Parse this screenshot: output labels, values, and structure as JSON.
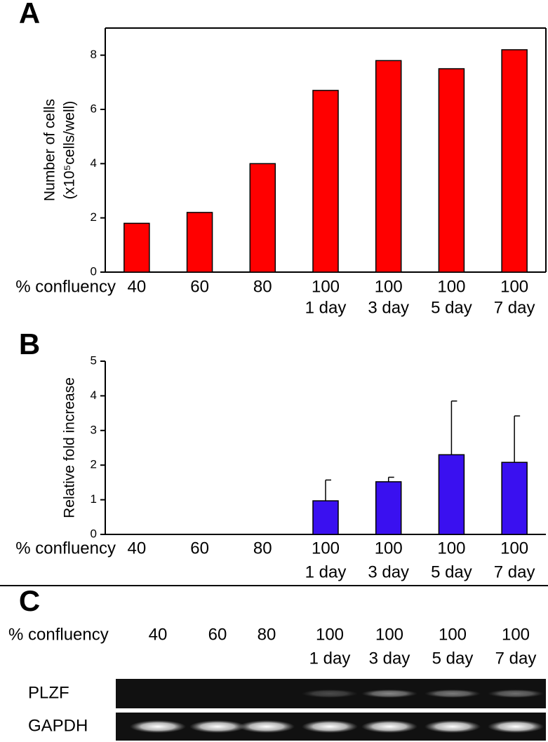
{
  "chart_data": [
    {
      "type": "bar",
      "panel": "A",
      "xlabel": "% confluency",
      "ylabel": [
        "Number of cells",
        "(x10⁵cells/well)"
      ],
      "categories": [
        [
          "40"
        ],
        [
          "60"
        ],
        [
          "80"
        ],
        [
          "100",
          "1 day"
        ],
        [
          "100",
          "3 day"
        ],
        [
          "100",
          "5 day"
        ],
        [
          "100",
          "7 day"
        ]
      ],
      "values": [
        1.8,
        2.2,
        4.0,
        6.7,
        7.8,
        7.5,
        8.2
      ],
      "color": "#ff0000",
      "ylim": [
        0,
        9
      ],
      "yticks": [
        0,
        2,
        4,
        6,
        8
      ],
      "box": true
    },
    {
      "type": "bar",
      "panel": "B",
      "xlabel": "% confluency",
      "ylabel": [
        "Relative fold increase"
      ],
      "categories": [
        [
          "40"
        ],
        [
          "60"
        ],
        [
          "80"
        ],
        [
          "100",
          "1 day"
        ],
        [
          "100",
          "3 day"
        ],
        [
          "100",
          "5 day"
        ],
        [
          "100",
          "7 day"
        ]
      ],
      "values": [
        null,
        null,
        null,
        0.97,
        1.52,
        2.3,
        2.08
      ],
      "errors": [
        null,
        null,
        null,
        0.6,
        0.13,
        1.55,
        1.34
      ],
      "color": "#3a10f0",
      "ylim": [
        0,
        5
      ],
      "yticks": [
        0,
        1,
        2,
        3,
        4,
        5
      ],
      "box": false
    }
  ],
  "panel_c": {
    "label": "C",
    "xlabel": "% confluency",
    "lanes": [
      [
        "40"
      ],
      [
        "60"
      ],
      [
        "80"
      ],
      [
        "100",
        "1 day"
      ],
      [
        "100",
        "3 day"
      ],
      [
        "100",
        "5 day"
      ],
      [
        "100",
        "7 day"
      ]
    ],
    "rows": [
      "PLZF",
      "GAPDH"
    ]
  }
}
